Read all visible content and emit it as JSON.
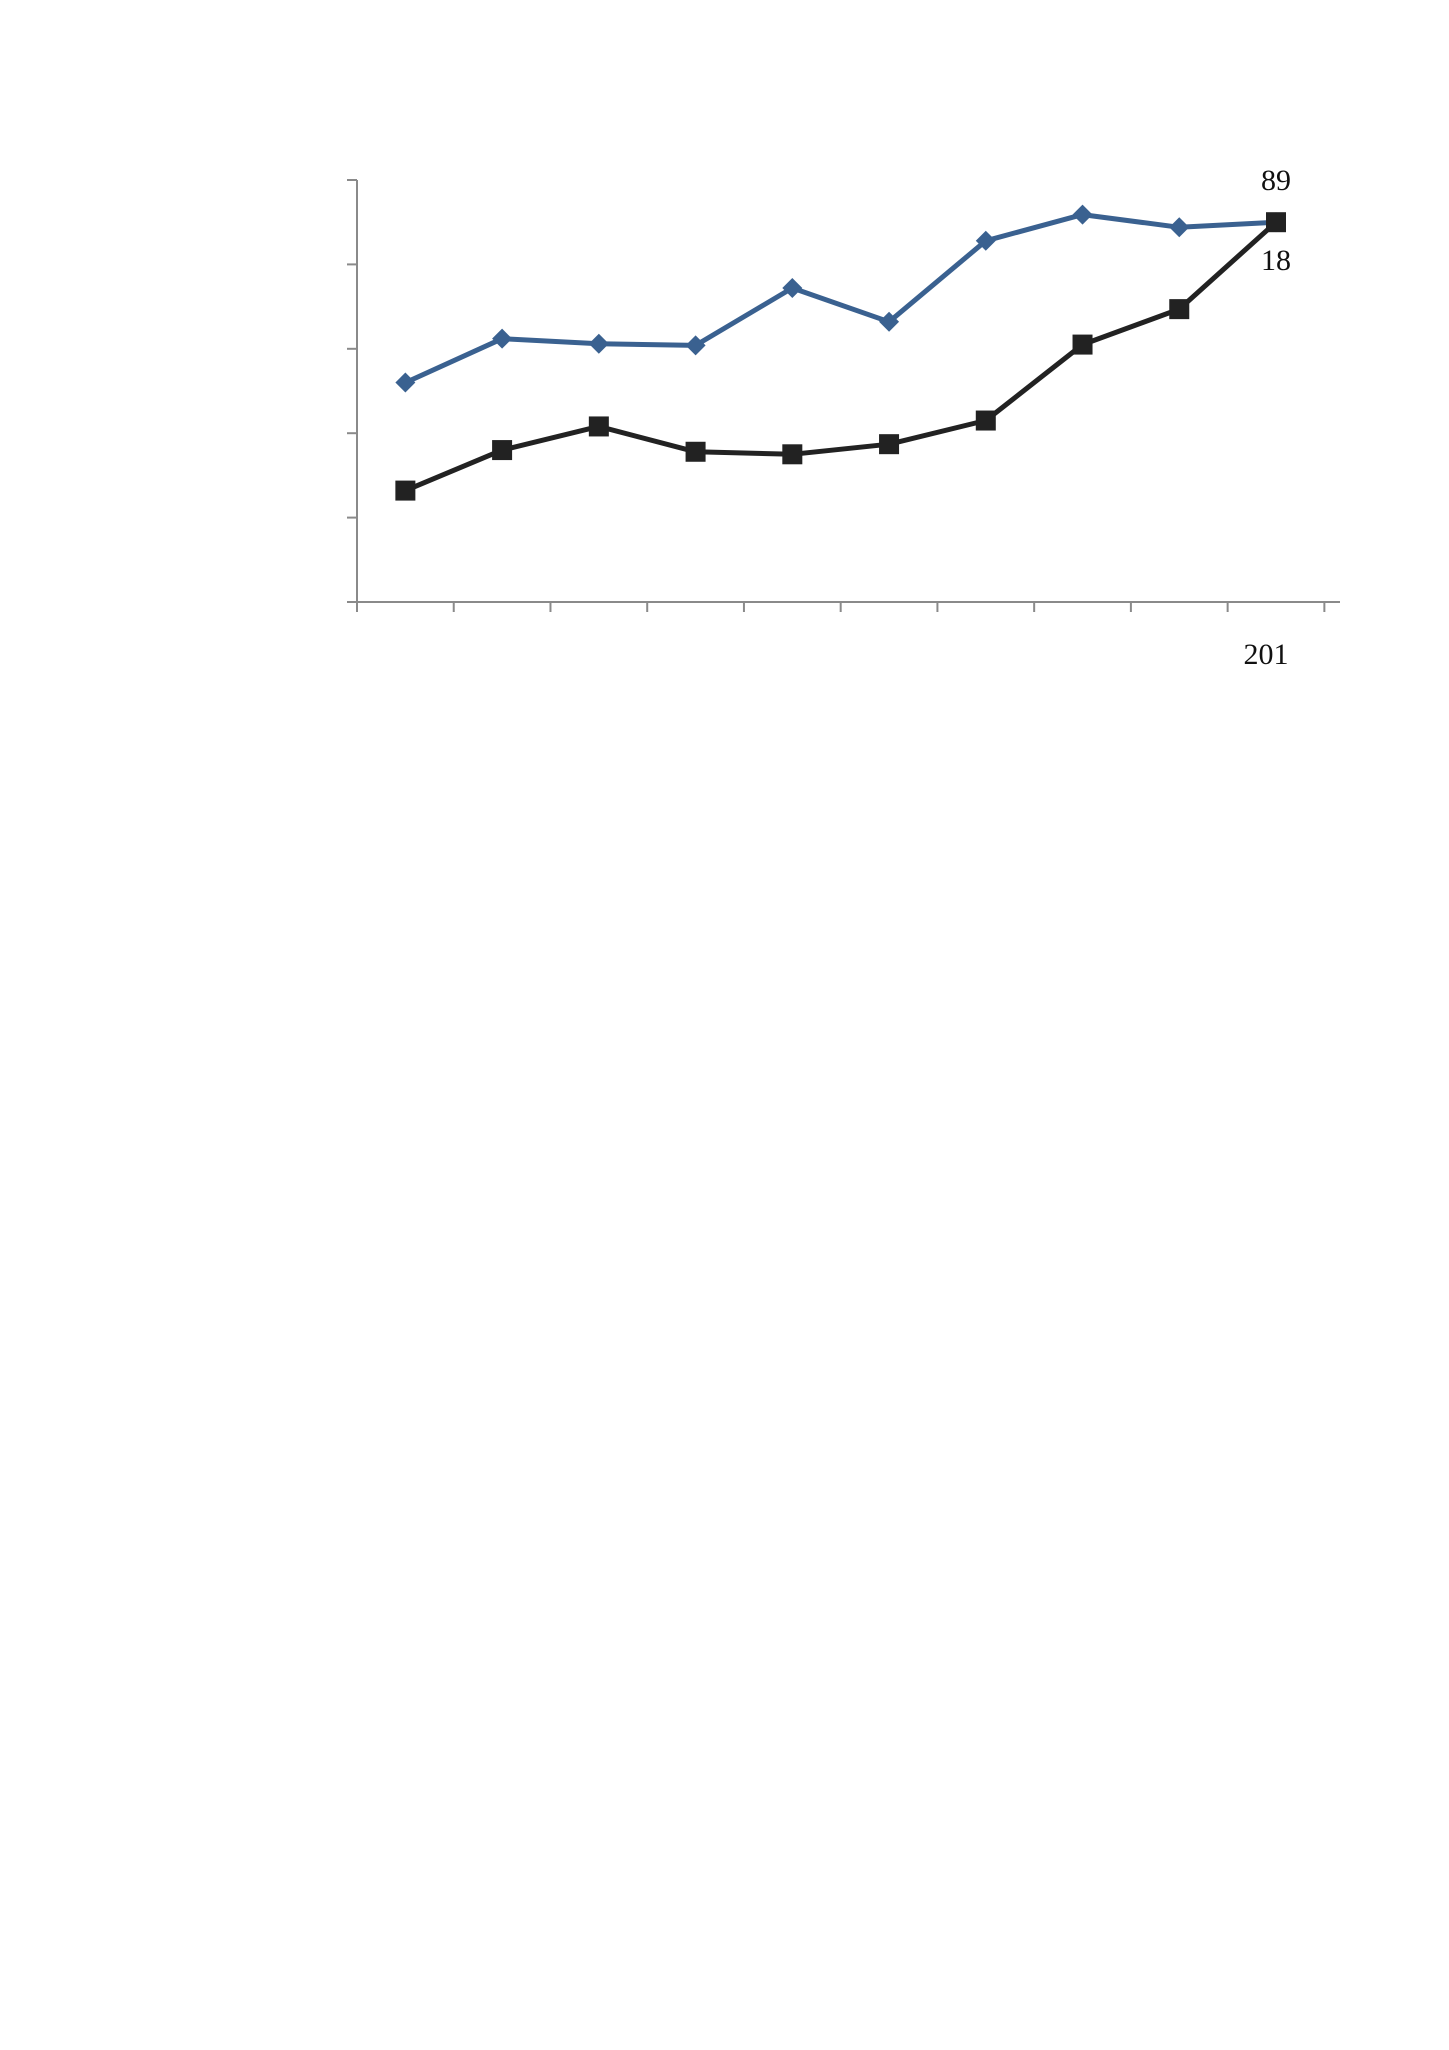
{
  "chart_data": {
    "type": "line",
    "title": "",
    "xlabel": "",
    "ylabel": "",
    "categories": [
      "",
      "",
      "",
      "",
      "",
      "",
      "",
      "",
      "",
      "201"
    ],
    "ylim": [
      0,
      5
    ],
    "y_ticks": [
      0,
      1,
      2,
      3,
      4,
      5
    ],
    "y_tick_labels": [],
    "grid": false,
    "legend": "none",
    "series": [
      {
        "values": [
          2.6,
          3.12,
          3.06,
          3.04,
          3.72,
          3.32,
          4.28,
          4.59,
          4.44,
          4.5
        ],
        "color": "#3a6190",
        "marker": "diamond",
        "end_label": "89"
      },
      {
        "values": [
          1.32,
          1.8,
          2.08,
          1.78,
          1.75,
          1.87,
          2.15,
          3.05,
          3.47,
          4.5
        ],
        "color": "#222222",
        "marker": "square",
        "end_label": "18"
      }
    ]
  }
}
